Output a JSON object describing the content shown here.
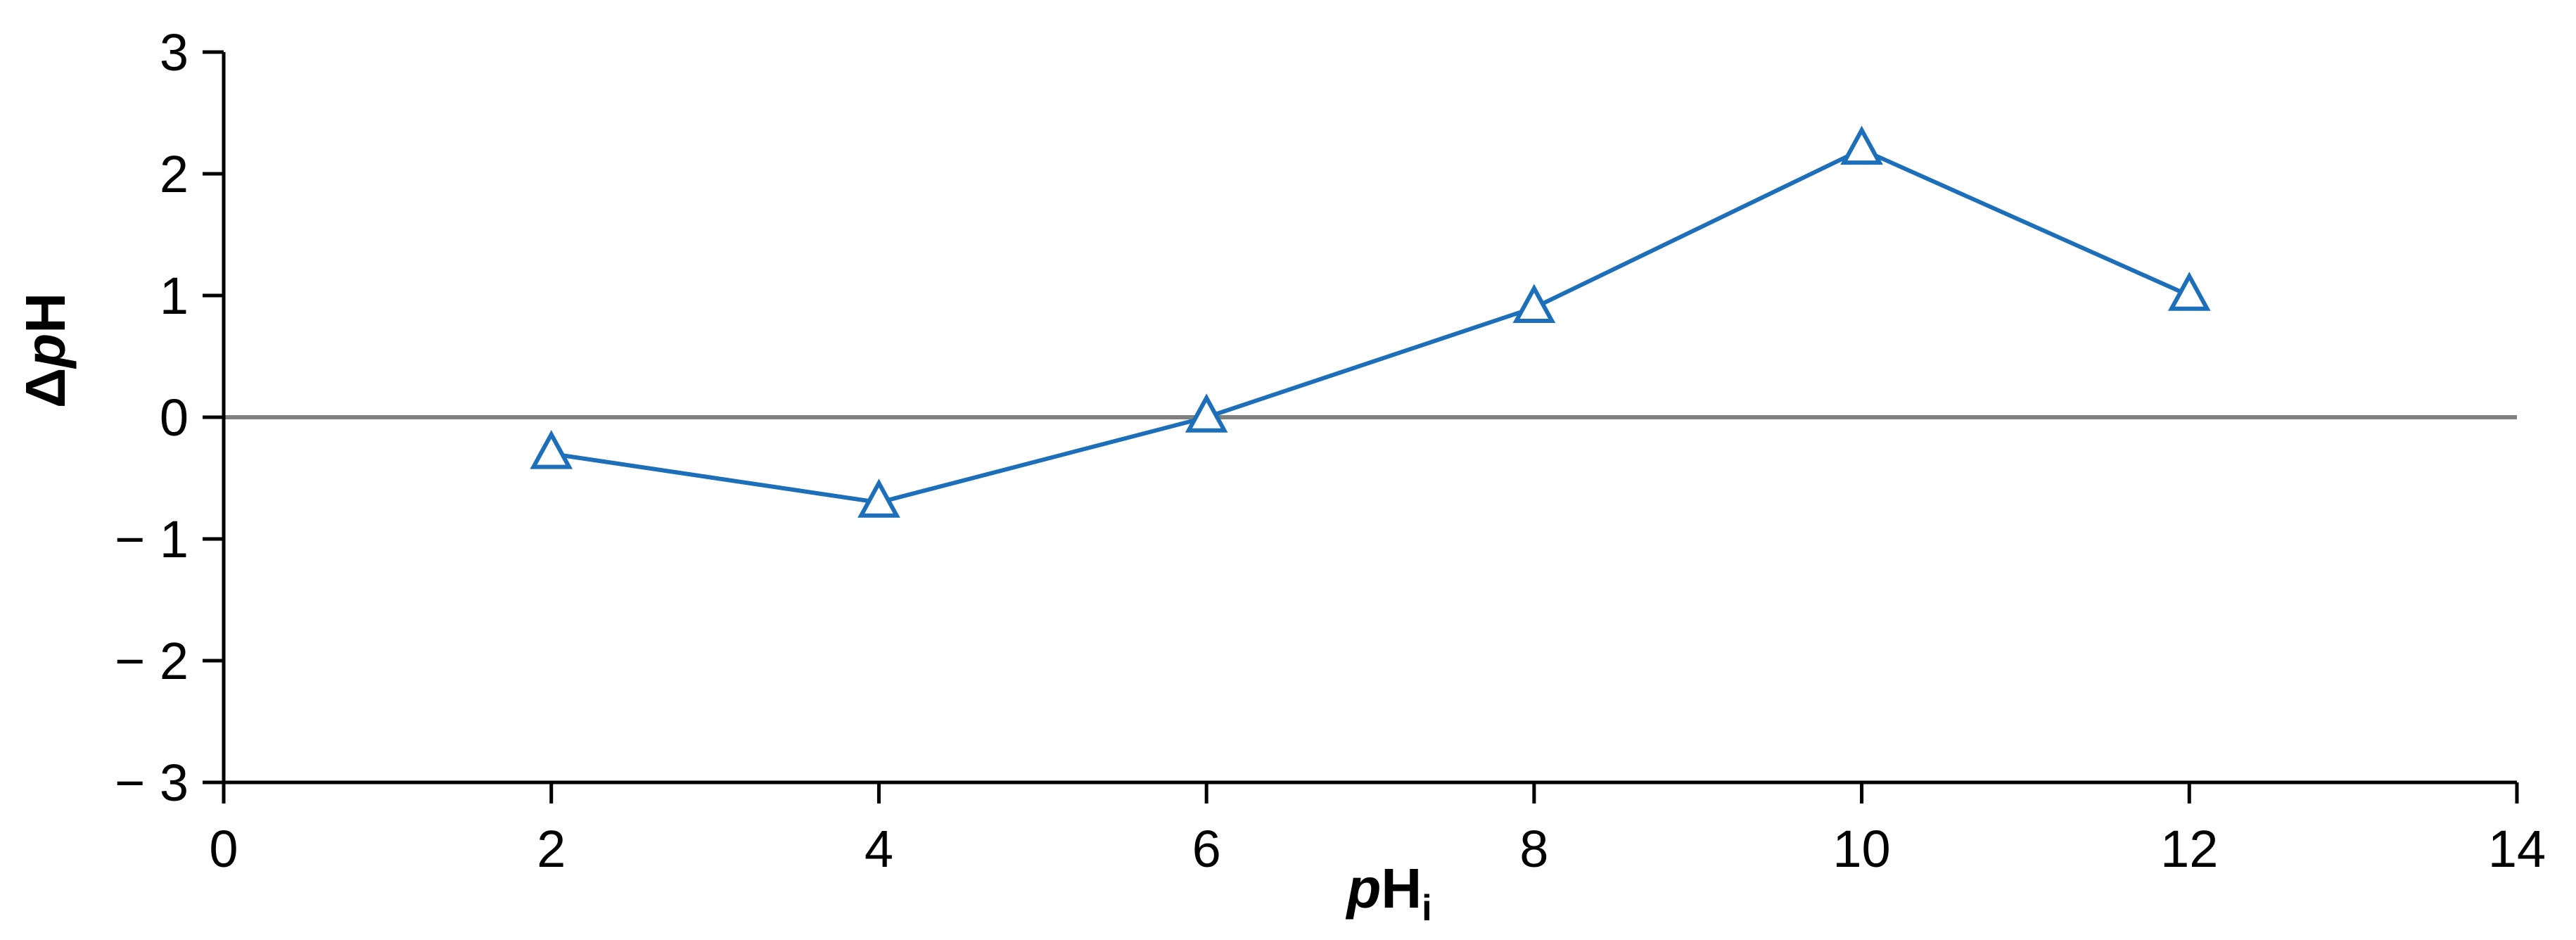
{
  "chart_data": {
    "type": "line",
    "xlabel": {
      "main": "p",
      "rest": "H",
      "sub": "i"
    },
    "ylabel": {
      "pre": "Δ",
      "main": "p",
      "rest": "H"
    },
    "xlim": [
      0,
      14
    ],
    "ylim": [
      -3,
      3
    ],
    "xticks": [
      "0",
      "2",
      "4",
      "6",
      "8",
      "10",
      "12",
      "14"
    ],
    "yticks": [
      "3",
      "2",
      "1",
      "0",
      "− 1",
      "− 2",
      "− 3"
    ],
    "grid": false,
    "legend": "none",
    "reference_line": {
      "y": 0,
      "color": "#808080"
    },
    "series": [
      {
        "color": "#1c6fb8",
        "marker": "open-triangle",
        "x": [
          2,
          4,
          6,
          8,
          10,
          12
        ],
        "y": [
          -0.3,
          -0.7,
          0.0,
          0.9,
          2.2,
          1.0
        ]
      }
    ]
  }
}
